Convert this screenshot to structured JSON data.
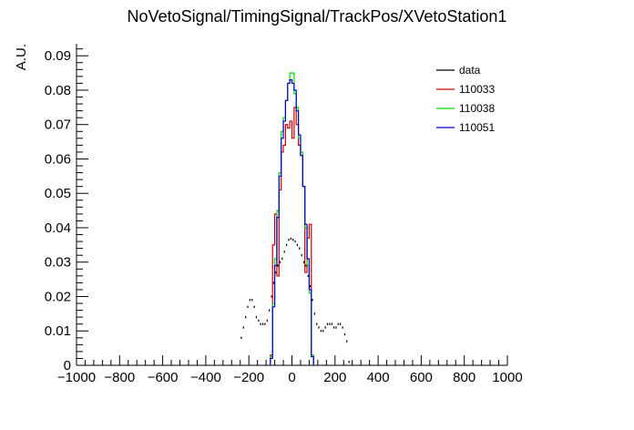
{
  "chart_data": {
    "type": "line",
    "title": "NoVetoSignal/TimingSignal/TrackPos/XVetoStation1",
    "xlabel": "",
    "ylabel": "A.U.",
    "xlim": [
      -1000,
      1000
    ],
    "ylim": [
      0,
      0.0935
    ],
    "grid": false,
    "legend_position": "top-right",
    "x_ticks": [
      -1000,
      -800,
      -600,
      -400,
      -200,
      0,
      200,
      400,
      600,
      800,
      1000
    ],
    "x_tick_labels": [
      "−1000",
      "−800",
      "−600",
      "−400",
      "−200",
      "0",
      "200",
      "400",
      "600",
      "800",
      "1000"
    ],
    "y_ticks": [
      0,
      0.01,
      0.02,
      0.03,
      0.04,
      0.05,
      0.06,
      0.07,
      0.08,
      0.09
    ],
    "y_tick_labels": [
      "0",
      "0.01",
      "0.02",
      "0.03",
      "0.04",
      "0.05",
      "0.06",
      "0.07",
      "0.08",
      "0.09"
    ],
    "series": [
      {
        "name": "data",
        "color": "#000000",
        "style": "points",
        "x": [
          -240,
          -230,
          -220,
          -210,
          -200,
          -190,
          -180,
          -170,
          -160,
          -150,
          -140,
          -130,
          -120,
          -110,
          -100,
          -90,
          -80,
          -70,
          -60,
          -50,
          -40,
          -30,
          -20,
          -10,
          0,
          10,
          20,
          30,
          40,
          50,
          60,
          70,
          80,
          90,
          100,
          110,
          120,
          130,
          140,
          150,
          160,
          170,
          180,
          190,
          200,
          210,
          220,
          230,
          240,
          250,
          260
        ],
        "values": [
          0.008,
          0.011,
          0.014,
          0.017,
          0.019,
          0.019,
          0.017,
          0.014,
          0.013,
          0.012,
          0.012,
          0.012,
          0.013,
          0.016,
          0.02,
          0.024,
          0.027,
          0.029,
          0.03,
          0.031,
          0.033,
          0.035,
          0.0365,
          0.0368,
          0.0365,
          0.036,
          0.035,
          0.034,
          0.032,
          0.03,
          0.029,
          0.026,
          0.023,
          0.019,
          0.015,
          0.012,
          0.011,
          0.01,
          0.01,
          0.011,
          0.012,
          0.012,
          0.012,
          0.011,
          0.011,
          0.012,
          0.012,
          0.011,
          0.009,
          0.007,
          0.001
        ]
      },
      {
        "name": "110033",
        "color": "#cc0000",
        "style": "step",
        "x": [
          -100,
          -90,
          -80,
          -70,
          -60,
          -50,
          -40,
          -30,
          -20,
          -10,
          0,
          10,
          20,
          30,
          40,
          50,
          60,
          70,
          80,
          90
        ],
        "values": [
          0.003,
          0.035,
          0.044,
          0.026,
          0.051,
          0.062,
          0.064,
          0.07,
          0.069,
          0.071,
          0.066,
          0.075,
          0.07,
          0.064,
          0.061,
          0.052,
          0.027,
          0.037,
          0.041,
          0.003
        ]
      },
      {
        "name": "110038",
        "color": "#00dd00",
        "style": "step",
        "x": [
          -100,
          -90,
          -80,
          -70,
          -60,
          -50,
          -40,
          -30,
          -20,
          -10,
          0,
          10,
          20,
          30,
          40,
          50,
          60,
          70,
          80,
          90
        ],
        "values": [
          0.0025,
          0.018,
          0.031,
          0.045,
          0.056,
          0.068,
          0.072,
          0.077,
          0.082,
          0.085,
          0.085,
          0.079,
          0.075,
          0.066,
          0.062,
          0.052,
          0.04,
          0.029,
          0.021,
          0.003
        ]
      },
      {
        "name": "110051",
        "color": "#0000cc",
        "style": "step",
        "x": [
          -100,
          -90,
          -80,
          -70,
          -60,
          -50,
          -40,
          -30,
          -20,
          -10,
          0,
          10,
          20,
          30,
          40,
          50,
          60,
          70,
          80,
          90
        ],
        "values": [
          0.002,
          0.017,
          0.029,
          0.043,
          0.055,
          0.066,
          0.071,
          0.077,
          0.082,
          0.083,
          0.082,
          0.08,
          0.074,
          0.067,
          0.061,
          0.052,
          0.041,
          0.031,
          0.022,
          0.0025
        ]
      }
    ]
  }
}
